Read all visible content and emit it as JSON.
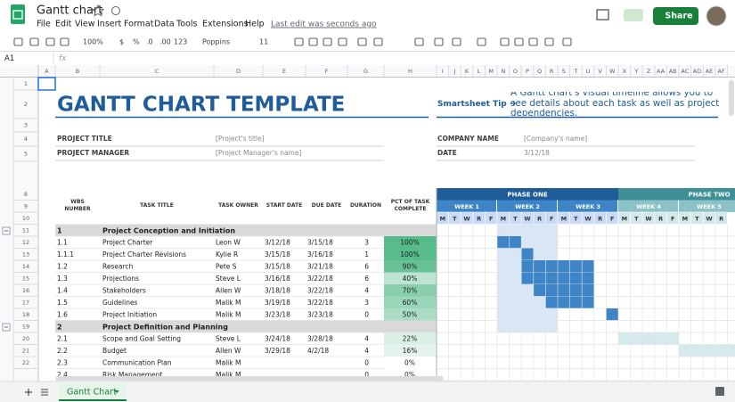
{
  "app": {
    "doc_title": "Gantt chart",
    "menus": [
      "File",
      "Edit",
      "View",
      "Insert",
      "Format",
      "Data",
      "Tools",
      "Extensions",
      "Help"
    ],
    "last_edit": "Last edit was seconds ago",
    "share": "Share"
  },
  "toolbar": {
    "zoom": "100%",
    "currency": "$",
    "percent": "%",
    "decrease_decimal": ".0",
    "increase_decimal": ".00",
    "format": "123",
    "font": "Poppins",
    "font_size": "11"
  },
  "formula_bar": {
    "cell": "A1",
    "fx": "fx"
  },
  "grid": {
    "columns": [
      "A",
      "B",
      "C",
      "D",
      "E",
      "F",
      "G",
      "H",
      "I",
      "J",
      "K",
      "L",
      "M",
      "N",
      "O",
      "P",
      "Q",
      "R",
      "S",
      "T",
      "U",
      "V",
      "W",
      "X",
      "Y",
      "Z",
      "AA",
      "AB",
      "AC",
      "AD",
      "AE",
      "AF"
    ],
    "rows": [
      "1",
      "2",
      "3",
      "4",
      "5",
      "8",
      "9",
      "10",
      "11",
      "12",
      "13",
      "14",
      "15",
      "16",
      "17",
      "18",
      "19",
      "20",
      "21",
      "22"
    ]
  },
  "sheet": {
    "title": "GANTT CHART TEMPLATE",
    "tip_label": "Smartsheet Tip ➜",
    "tip": "A Gantt chart's visual timeline allows you to see details about each task as well as project dependencies.",
    "fields": [
      {
        "label": "PROJECT TITLE",
        "value": "[Project's title]"
      },
      {
        "label": "PROJECT MANAGER",
        "value": "[Project Manager's name]"
      },
      {
        "label": "COMPANY NAME",
        "value": "[Company's name]"
      },
      {
        "label": "DATE",
        "value": "3/12/18"
      }
    ],
    "headers": [
      "WBS NUMBER",
      "TASK TITLE",
      "TASK OWNER",
      "START DATE",
      "DUE DATE",
      "DURATION",
      "PCT OF TASK COMPLETE"
    ],
    "phases": [
      "PHASE ONE",
      "PHASE TWO"
    ],
    "weeks": [
      "WEEK 1",
      "WEEK 2",
      "WEEK 3",
      "WEEK 4",
      "WEEK 5"
    ],
    "days": [
      "M",
      "T",
      "W",
      "R",
      "F",
      "M",
      "T",
      "W",
      "R",
      "F",
      "M",
      "T",
      "W",
      "R",
      "F",
      "M",
      "T",
      "W",
      "R",
      "F",
      "M",
      "T",
      "W",
      "R"
    ],
    "tasks": [
      {
        "cells": [
          "1",
          "Project Conception and Initiation"
        ]
      },
      {
        "cells": [
          "1.1",
          "Project Charter",
          "Leon W",
          "3/12/18",
          "3/15/18",
          "3",
          "100%"
        ]
      },
      {
        "cells": [
          "1.1.1",
          "Project Charter Revisions",
          "Kylie R",
          "3/15/18",
          "3/16/18",
          "1",
          "100%"
        ]
      },
      {
        "cells": [
          "1.2",
          "Research",
          "Pete S",
          "3/15/18",
          "3/21/18",
          "6",
          "90%"
        ]
      },
      {
        "cells": [
          "1.3",
          "Projections",
          "Steve L",
          "3/16/18",
          "3/22/18",
          "6",
          "40%"
        ]
      },
      {
        "cells": [
          "1.4",
          "Stakeholders",
          "Allen W",
          "3/18/18",
          "3/22/18",
          "4",
          "70%"
        ]
      },
      {
        "cells": [
          "1.5",
          "Guidelines",
          "Malik M",
          "3/19/18",
          "3/22/18",
          "3",
          "60%"
        ]
      },
      {
        "cells": [
          "1.6",
          "Project Initiation",
          "Malik M",
          "3/23/18",
          "3/23/18",
          "0",
          "50%"
        ]
      },
      {
        "cells": [
          "2",
          "Project Definition and Planning"
        ]
      },
      {
        "cells": [
          "2.1",
          "Scope and Goal Setting",
          "Steve L",
          "3/24/18",
          "3/28/18",
          "4",
          "22%"
        ]
      },
      {
        "cells": [
          "2.2",
          "Budget",
          "Allen W",
          "3/29/18",
          "4/2/18",
          "4",
          "16%"
        ]
      },
      {
        "cells": [
          "2.3",
          "Communication Plan",
          "Malik M",
          null,
          null,
          "0",
          "0%"
        ]
      },
      {
        "cells": [
          "2.4",
          "Risk Management",
          "Malik M",
          null,
          null,
          "0",
          "0%"
        ]
      }
    ]
  },
  "tabs": [
    "Gantt Chart"
  ]
}
